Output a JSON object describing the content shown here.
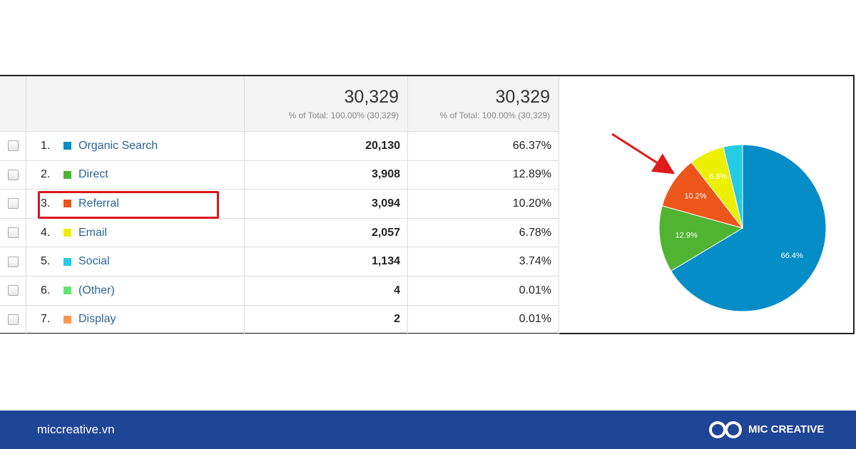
{
  "table": {
    "header": {
      "totals": [
        {
          "value": "30,329",
          "note": "% of Total: 100.00% (30,329)"
        },
        {
          "value": "30,329",
          "note": "% of Total: 100.00% (30,329)"
        }
      ]
    },
    "rows": [
      {
        "index": "1.",
        "name": "Organic Search",
        "color": "#058dc7",
        "sessions": "20,130",
        "percent": "66.37%"
      },
      {
        "index": "2.",
        "name": "Direct",
        "color": "#50b432",
        "sessions": "3,908",
        "percent": "12.89%"
      },
      {
        "index": "3.",
        "name": "Referral",
        "color": "#ed561b",
        "sessions": "3,094",
        "percent": "10.20%"
      },
      {
        "index": "4.",
        "name": "Email",
        "color": "#edef00",
        "sessions": "2,057",
        "percent": "6.78%"
      },
      {
        "index": "5.",
        "name": "Social",
        "color": "#24cbe5",
        "sessions": "1,134",
        "percent": "3.74%"
      },
      {
        "index": "6.",
        "name": "(Other)",
        "color": "#64e572",
        "sessions": "4",
        "percent": "0.01%"
      },
      {
        "index": "7.",
        "name": "Display",
        "color": "#ff9655",
        "sessions": "2",
        "percent": "0.01%"
      }
    ]
  },
  "chart_data": {
    "type": "pie",
    "values": [
      66.4,
      12.9,
      10.2,
      6.8,
      3.7
    ],
    "value_labels": [
      "66.4%",
      "12.9%",
      "10.2%",
      "6.8%",
      null
    ],
    "colors": [
      "#058dc7",
      "#50b432",
      "#ed561b",
      "#edef00",
      "#24cbe5"
    ]
  },
  "footer": {
    "site": "miccreative.vn",
    "brand": "MIC CREATIVE"
  }
}
